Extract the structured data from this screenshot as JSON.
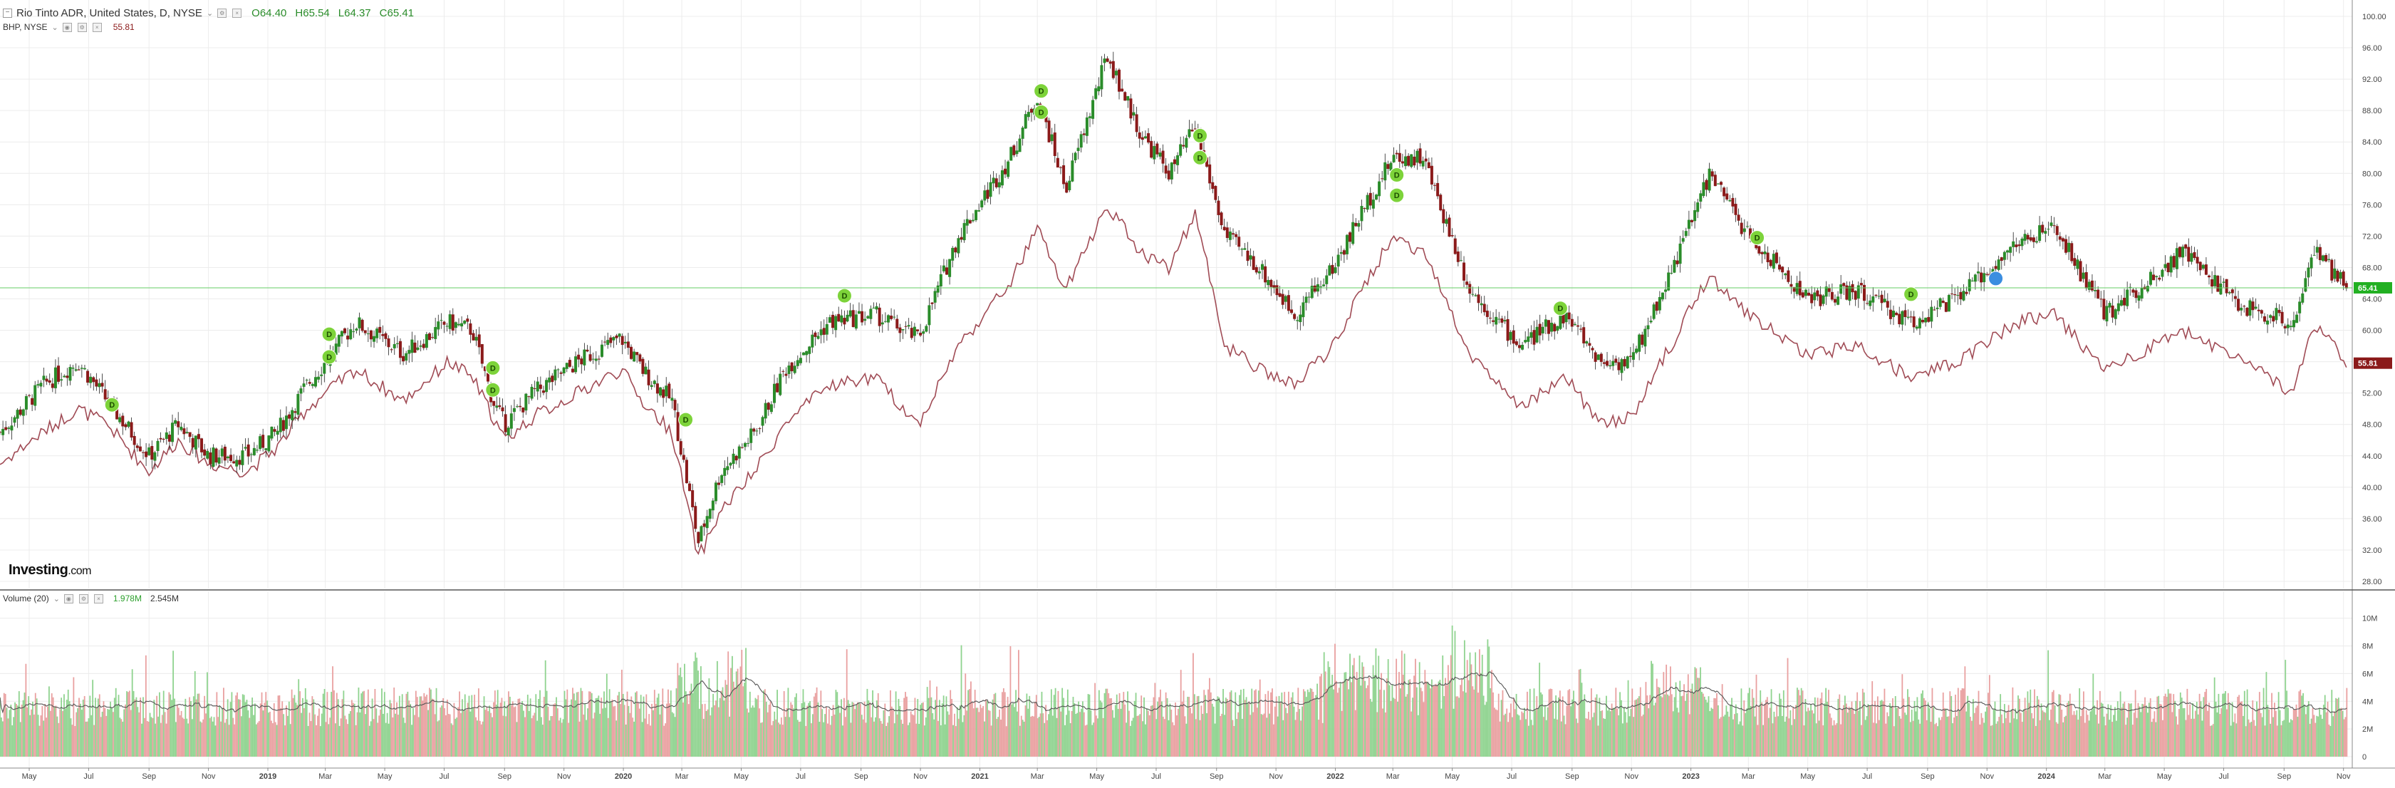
{
  "header": {
    "main_title": "Rio Tinto ADR, United States, D, NYSE",
    "caret": "⌄",
    "ohlc": {
      "open": "O64.40",
      "high": "H65.54",
      "low": "L64.37",
      "close": "C65.41"
    },
    "compare_label": "BHP, NYSE",
    "compare_value": "55.81",
    "volume_label": "Volume (20)",
    "volume_value_a": "1.978M",
    "volume_value_b": "2.545M"
  },
  "branding": {
    "logo_text": "Investing",
    "logo_suffix": ".com"
  },
  "colors": {
    "up": "#2a8c2a",
    "down": "#8b1a1a",
    "compare_line": "#a04b55",
    "price_line": "#66cc66",
    "dividend_marker": "#7dd33a",
    "volume_up": "#8fd38f",
    "volume_down": "#e9a0a0",
    "volume_ma": "#555555"
  },
  "chart_data": {
    "type": "line",
    "title": "Rio Tinto ADR, United States, D, NYSE",
    "x_ticks": [
      "May",
      "Jul",
      "Sep",
      "Nov",
      "2019",
      "Mar",
      "May",
      "Jul",
      "Sep",
      "Nov",
      "2020",
      "Mar",
      "May",
      "Jul",
      "Sep",
      "Nov",
      "2021",
      "Mar",
      "May",
      "Jul",
      "Sep",
      "Nov",
      "2022",
      "Mar",
      "May",
      "Jul",
      "Sep",
      "Nov",
      "2023",
      "Mar",
      "May",
      "Jul",
      "Sep",
      "Nov",
      "2024",
      "Mar",
      "May",
      "Jul",
      "Sep",
      "Nov"
    ],
    "x_range": [
      "2018-04-01",
      "2024-11-10"
    ],
    "ylim": [
      28,
      100
    ],
    "y_ticks": [
      "100.00",
      "96.00",
      "92.00",
      "88.00",
      "84.00",
      "80.00",
      "76.00",
      "72.00",
      "68.00",
      "64.00",
      "60.00",
      "56.00",
      "52.00",
      "48.00",
      "44.00",
      "40.00",
      "36.00",
      "32.00",
      "28.00"
    ],
    "last_price": "65.41",
    "last_compare": "55.81",
    "grid": true,
    "series": [
      {
        "name": "Rio Tinto ADR",
        "points": [
          [
            "2018-04-01",
            47
          ],
          [
            "2018-05-15",
            53
          ],
          [
            "2018-06-20",
            56
          ],
          [
            "2018-07-20",
            51
          ],
          [
            "2018-09-01",
            44
          ],
          [
            "2018-10-01",
            48
          ],
          [
            "2018-11-01",
            44
          ],
          [
            "2018-12-10",
            44
          ],
          [
            "2019-01-10",
            47
          ],
          [
            "2019-02-10",
            53
          ],
          [
            "2019-03-01",
            56
          ],
          [
            "2019-04-01",
            61
          ],
          [
            "2019-05-20",
            57
          ],
          [
            "2019-07-05",
            61
          ],
          [
            "2019-07-30",
            60
          ],
          [
            "2019-08-20",
            51
          ],
          [
            "2019-09-01",
            48
          ],
          [
            "2019-10-01",
            52
          ],
          [
            "2019-11-15",
            56
          ],
          [
            "2019-12-30",
            59
          ],
          [
            "2020-01-20",
            55
          ],
          [
            "2020-02-20",
            51
          ],
          [
            "2020-03-18",
            33
          ],
          [
            "2020-04-10",
            42
          ],
          [
            "2020-05-15",
            47
          ],
          [
            "2020-06-15",
            55
          ],
          [
            "2020-07-30",
            61
          ],
          [
            "2020-09-15",
            62
          ],
          [
            "2020-10-30",
            59
          ],
          [
            "2020-12-10",
            72
          ],
          [
            "2021-02-01",
            82
          ],
          [
            "2021-03-01",
            90
          ],
          [
            "2021-03-30",
            78
          ],
          [
            "2021-05-12",
            95
          ],
          [
            "2021-06-15",
            85
          ],
          [
            "2021-07-15",
            80
          ],
          [
            "2021-08-10",
            86
          ],
          [
            "2021-09-10",
            72
          ],
          [
            "2021-10-15",
            68
          ],
          [
            "2021-11-20",
            62
          ],
          [
            "2021-12-30",
            68
          ],
          [
            "2022-02-01",
            76
          ],
          [
            "2022-03-01",
            82
          ],
          [
            "2022-04-01",
            82
          ],
          [
            "2022-05-20",
            65
          ],
          [
            "2022-07-10",
            58
          ],
          [
            "2022-08-25",
            62
          ],
          [
            "2022-10-01",
            56
          ],
          [
            "2022-11-01",
            56
          ],
          [
            "2022-12-20",
            70
          ],
          [
            "2023-01-20",
            80
          ],
          [
            "2023-03-01",
            72
          ],
          [
            "2023-05-01",
            64
          ],
          [
            "2023-06-20",
            65
          ],
          [
            "2023-08-15",
            61
          ],
          [
            "2023-10-01",
            64
          ],
          [
            "2023-12-01",
            71
          ],
          [
            "2024-01-10",
            73
          ],
          [
            "2024-03-01",
            62
          ],
          [
            "2024-05-20",
            70
          ],
          [
            "2024-07-20",
            63
          ],
          [
            "2024-09-10",
            61
          ],
          [
            "2024-10-01",
            70
          ],
          [
            "2024-11-05",
            65.41
          ]
        ]
      },
      {
        "name": "BHP, NYSE",
        "points": [
          [
            "2018-04-01",
            43
          ],
          [
            "2018-05-15",
            47
          ],
          [
            "2018-06-20",
            50
          ],
          [
            "2018-07-20",
            48
          ],
          [
            "2018-09-01",
            42
          ],
          [
            "2018-10-01",
            46
          ],
          [
            "2018-11-01",
            43
          ],
          [
            "2018-12-10",
            42
          ],
          [
            "2019-01-10",
            45
          ],
          [
            "2019-02-10",
            50
          ],
          [
            "2019-03-01",
            52
          ],
          [
            "2019-04-01",
            55
          ],
          [
            "2019-05-20",
            51
          ],
          [
            "2019-07-05",
            56
          ],
          [
            "2019-07-30",
            54
          ],
          [
            "2019-08-20",
            49
          ],
          [
            "2019-09-01",
            46
          ],
          [
            "2019-10-01",
            49
          ],
          [
            "2019-11-15",
            52
          ],
          [
            "2019-12-30",
            55
          ],
          [
            "2020-01-20",
            51
          ],
          [
            "2020-02-20",
            47
          ],
          [
            "2020-03-18",
            31
          ],
          [
            "2020-04-10",
            37
          ],
          [
            "2020-05-15",
            42
          ],
          [
            "2020-06-15",
            48
          ],
          [
            "2020-07-30",
            53
          ],
          [
            "2020-09-15",
            54
          ],
          [
            "2020-10-30",
            48
          ],
          [
            "2020-12-10",
            58
          ],
          [
            "2021-02-01",
            66
          ],
          [
            "2021-03-01",
            73
          ],
          [
            "2021-03-30",
            65
          ],
          [
            "2021-05-12",
            76
          ],
          [
            "2021-06-15",
            70
          ],
          [
            "2021-07-15",
            68
          ],
          [
            "2021-08-10",
            75
          ],
          [
            "2021-09-10",
            58
          ],
          [
            "2021-10-15",
            55
          ],
          [
            "2021-11-20",
            53
          ],
          [
            "2021-12-30",
            58
          ],
          [
            "2022-02-01",
            66
          ],
          [
            "2022-03-01",
            72
          ],
          [
            "2022-04-01",
            70
          ],
          [
            "2022-05-20",
            57
          ],
          [
            "2022-07-10",
            50
          ],
          [
            "2022-08-25",
            54
          ],
          [
            "2022-10-01",
            48
          ],
          [
            "2022-11-01",
            49
          ],
          [
            "2022-12-20",
            60
          ],
          [
            "2023-01-20",
            67
          ],
          [
            "2023-03-01",
            62
          ],
          [
            "2023-05-01",
            57
          ],
          [
            "2023-06-20",
            58
          ],
          [
            "2023-08-15",
            54
          ],
          [
            "2023-10-01",
            56
          ],
          [
            "2023-12-01",
            61
          ],
          [
            "2024-01-10",
            62
          ],
          [
            "2024-03-01",
            55
          ],
          [
            "2024-05-20",
            60
          ],
          [
            "2024-07-20",
            56
          ],
          [
            "2024-09-10",
            52
          ],
          [
            "2024-10-01",
            61
          ],
          [
            "2024-11-05",
            55.81
          ]
        ]
      }
    ],
    "dividend_markers": [
      {
        "date": "2018-07-25",
        "value": 50.5,
        "label": "D"
      },
      {
        "date": "2019-03-05",
        "value": 59.5,
        "label": "D"
      },
      {
        "date": "2019-03-05",
        "value": 56.6,
        "label": "D"
      },
      {
        "date": "2019-08-20",
        "value": 55.2,
        "label": "D"
      },
      {
        "date": "2019-08-20",
        "value": 52.4,
        "label": "D"
      },
      {
        "date": "2020-03-05",
        "value": 48.6,
        "label": "D"
      },
      {
        "date": "2020-08-15",
        "value": 64.4,
        "label": "D"
      },
      {
        "date": "2021-03-05",
        "value": 90.5,
        "label": "D"
      },
      {
        "date": "2021-03-05",
        "value": 87.8,
        "label": "D"
      },
      {
        "date": "2021-08-15",
        "value": 84.8,
        "label": "D"
      },
      {
        "date": "2021-08-15",
        "value": 82.0,
        "label": "D"
      },
      {
        "date": "2022-03-05",
        "value": 79.8,
        "label": "D"
      },
      {
        "date": "2022-03-05",
        "value": 77.2,
        "label": "D"
      },
      {
        "date": "2022-08-20",
        "value": 62.8,
        "label": "D"
      },
      {
        "date": "2023-03-10",
        "value": 71.8,
        "label": "D"
      },
      {
        "date": "2023-08-15",
        "value": 64.6,
        "label": "D"
      },
      {
        "date": "2023-11-10",
        "value": 66.6,
        "label": "D"
      }
    ],
    "volume": {
      "y_ticks": [
        "10M",
        "8M",
        "6M",
        "4M",
        "2M",
        "0"
      ],
      "ylim": [
        0,
        10.5
      ],
      "unit": "M",
      "ma_period": 20
    }
  }
}
